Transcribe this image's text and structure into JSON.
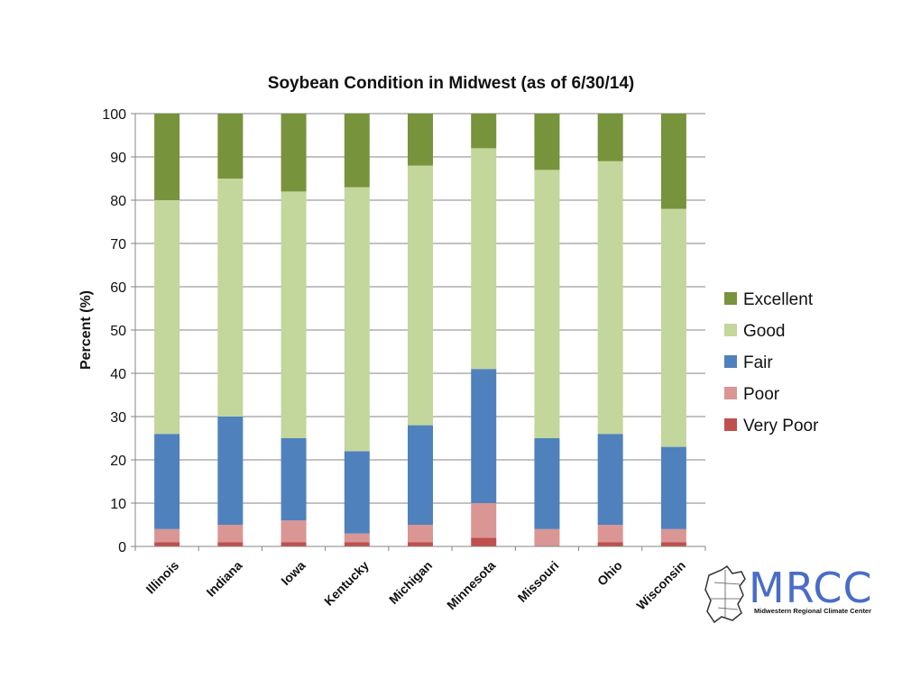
{
  "chart_data": {
    "type": "bar",
    "stacked": true,
    "title": "Soybean Condition in Midwest (as of 6/30/14)",
    "xlabel": "",
    "ylabel": "Percent (%)",
    "ylim": [
      0,
      100
    ],
    "yticks": [
      0,
      10,
      20,
      30,
      40,
      50,
      60,
      70,
      80,
      90,
      100
    ],
    "grid": true,
    "legend_position": "right",
    "categories": [
      "Illinois",
      "Indiana",
      "Iowa",
      "Kentucky",
      "Michigan",
      "Minnesota",
      "Missouri",
      "Ohio",
      "Wisconsin"
    ],
    "series": [
      {
        "name": "Very Poor",
        "color": "#c0504d",
        "values": [
          1,
          1,
          1,
          1,
          1,
          2,
          0,
          1,
          1
        ]
      },
      {
        "name": "Poor",
        "color": "#d99694",
        "values": [
          3,
          4,
          5,
          2,
          4,
          8,
          4,
          4,
          3
        ]
      },
      {
        "name": "Fair",
        "color": "#4f81bd",
        "values": [
          22,
          25,
          19,
          19,
          23,
          31,
          21,
          21,
          19
        ]
      },
      {
        "name": "Good",
        "color": "#c3d69b",
        "values": [
          54,
          55,
          57,
          61,
          60,
          51,
          62,
          63,
          55
        ]
      },
      {
        "name": "Excellent",
        "color": "#77933c",
        "values": [
          20,
          15,
          18,
          17,
          12,
          8,
          13,
          11,
          22
        ]
      }
    ]
  },
  "logo": {
    "name": "MRCC",
    "subtitle": "Midwestern Regional Climate Center"
  }
}
